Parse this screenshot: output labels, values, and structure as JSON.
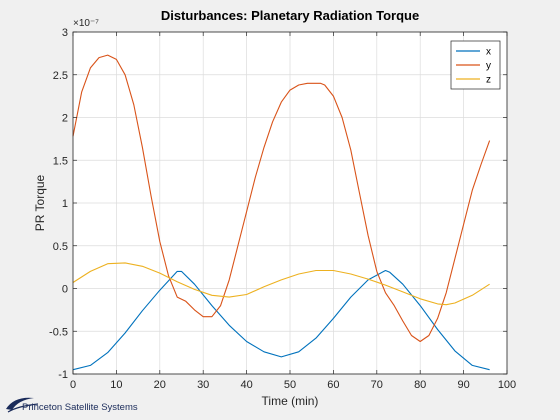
{
  "chart_data": {
    "type": "line",
    "title": "Disturbances: Planetary Radiation Torque",
    "xlabel": "Time (min)",
    "ylabel": "PR Torque",
    "y_exponent_label": "×10⁻⁷",
    "xlim": [
      0,
      100
    ],
    "ylim": [
      -1,
      3
    ],
    "xticks": [
      "0",
      "10",
      "20",
      "30",
      "40",
      "50",
      "60",
      "70",
      "80",
      "90",
      "100"
    ],
    "yticks": [
      "-1",
      "-0.5",
      "0",
      "0.5",
      "1",
      "1.5",
      "2",
      "2.5",
      "3"
    ],
    "grid": true,
    "legend_position": "top-right",
    "series": [
      {
        "name": "x",
        "color": "#0072bd",
        "x": [
          0,
          4,
          8,
          12,
          16,
          20,
          24,
          25,
          28,
          32,
          36,
          40,
          44,
          48,
          52,
          56,
          60,
          64,
          68,
          72,
          73,
          76,
          80,
          84,
          88,
          92,
          96
        ],
        "y": [
          -0.95,
          -0.9,
          -0.75,
          -0.52,
          -0.26,
          -0.02,
          0.2,
          0.2,
          0.05,
          -0.2,
          -0.43,
          -0.62,
          -0.74,
          -0.8,
          -0.74,
          -0.58,
          -0.35,
          -0.1,
          0.1,
          0.21,
          0.19,
          0.05,
          -0.2,
          -0.48,
          -0.73,
          -0.9,
          -0.95
        ]
      },
      {
        "name": "y",
        "color": "#d95319",
        "x": [
          0,
          2,
          4,
          6,
          8,
          10,
          12,
          14,
          16,
          18,
          20,
          22,
          24,
          26,
          28,
          30,
          32,
          34,
          36,
          38,
          40,
          42,
          44,
          46,
          48,
          50,
          52,
          54,
          56,
          57,
          58,
          60,
          62,
          64,
          66,
          68,
          70,
          72,
          74,
          76,
          78,
          80,
          82,
          84,
          86,
          88,
          90,
          92,
          94,
          96
        ],
        "y": [
          1.78,
          2.3,
          2.58,
          2.7,
          2.73,
          2.68,
          2.5,
          2.15,
          1.65,
          1.08,
          0.55,
          0.15,
          -0.1,
          -0.15,
          -0.25,
          -0.33,
          -0.33,
          -0.2,
          0.1,
          0.5,
          0.9,
          1.3,
          1.65,
          1.95,
          2.18,
          2.32,
          2.38,
          2.4,
          2.4,
          2.4,
          2.38,
          2.25,
          2.0,
          1.62,
          1.12,
          0.62,
          0.2,
          -0.05,
          -0.2,
          -0.38,
          -0.55,
          -0.62,
          -0.55,
          -0.35,
          -0.05,
          0.35,
          0.75,
          1.15,
          1.45,
          1.73
        ]
      },
      {
        "name": "z",
        "color": "#edb120",
        "x": [
          0,
          4,
          8,
          12,
          16,
          20,
          24,
          28,
          32,
          36,
          40,
          44,
          48,
          52,
          56,
          60,
          64,
          68,
          72,
          76,
          80,
          84,
          86,
          88,
          92,
          96
        ],
        "y": [
          0.07,
          0.2,
          0.29,
          0.3,
          0.26,
          0.18,
          0.08,
          -0.01,
          -0.08,
          -0.1,
          -0.07,
          0.02,
          0.1,
          0.17,
          0.21,
          0.21,
          0.17,
          0.11,
          0.04,
          -0.04,
          -0.12,
          -0.18,
          -0.19,
          -0.17,
          -0.08,
          0.05
        ]
      }
    ]
  },
  "logo": {
    "text": "Princeton Satellite Systems",
    "icon": "princeton-satellite-swoosh-icon"
  }
}
